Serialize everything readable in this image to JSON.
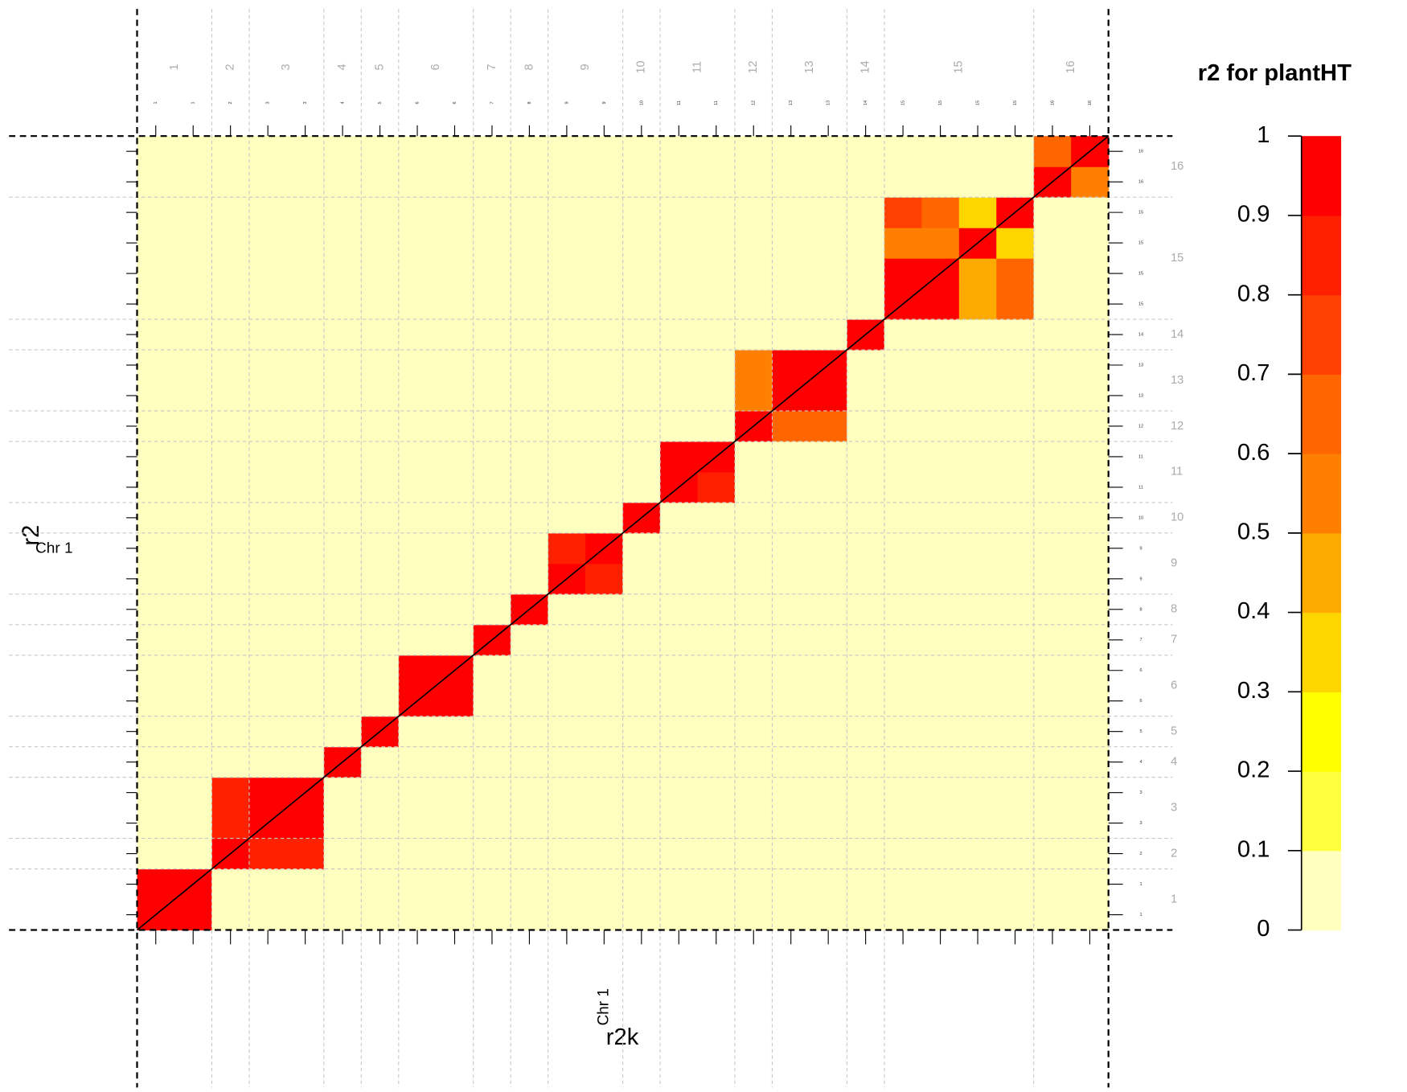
{
  "chart_data": {
    "type": "heatmap",
    "x_label": "r2k",
    "y_label": "r2",
    "sublabel": "Chr 1",
    "markers": [
      "1",
      "1",
      "2",
      "3",
      "3",
      "4",
      "5",
      "6",
      "6",
      "7",
      "8",
      "9",
      "9",
      "10",
      "11",
      "11",
      "12",
      "13",
      "13",
      "14",
      "15",
      "15",
      "15",
      "15",
      "16",
      "16"
    ],
    "values": [
      [
        0.95,
        0.95,
        0,
        0,
        0,
        0,
        0,
        0,
        0,
        0,
        0,
        0,
        0,
        0,
        0,
        0,
        0,
        0,
        0,
        0,
        0,
        0,
        0,
        0,
        0,
        0
      ],
      [
        0.95,
        0.95,
        0,
        0,
        0,
        0,
        0,
        0,
        0,
        0,
        0,
        0,
        0,
        0,
        0,
        0,
        0,
        0,
        0,
        0,
        0,
        0,
        0,
        0,
        0,
        0
      ],
      [
        0,
        0,
        0.95,
        0.85,
        0.85,
        0,
        0,
        0,
        0,
        0,
        0,
        0,
        0,
        0,
        0,
        0,
        0,
        0,
        0,
        0,
        0,
        0,
        0,
        0,
        0,
        0
      ],
      [
        0,
        0,
        0.85,
        0.95,
        0.95,
        0,
        0,
        0,
        0,
        0,
        0,
        0,
        0,
        0,
        0,
        0,
        0,
        0,
        0,
        0,
        0,
        0,
        0,
        0,
        0,
        0
      ],
      [
        0,
        0,
        0.85,
        0.95,
        0.95,
        0,
        0,
        0,
        0,
        0,
        0,
        0,
        0,
        0,
        0,
        0,
        0,
        0,
        0,
        0,
        0,
        0,
        0,
        0,
        0,
        0
      ],
      [
        0,
        0,
        0,
        0,
        0,
        0.95,
        0,
        0,
        0,
        0,
        0,
        0,
        0,
        0,
        0,
        0,
        0,
        0,
        0,
        0,
        0,
        0,
        0,
        0,
        0,
        0
      ],
      [
        0,
        0,
        0,
        0,
        0,
        0,
        0.95,
        0,
        0,
        0,
        0,
        0,
        0,
        0,
        0,
        0,
        0,
        0,
        0,
        0,
        0,
        0,
        0,
        0,
        0,
        0
      ],
      [
        0,
        0,
        0,
        0,
        0,
        0,
        0,
        0.95,
        0.95,
        0,
        0,
        0,
        0,
        0,
        0,
        0,
        0,
        0,
        0,
        0,
        0,
        0,
        0,
        0,
        0,
        0
      ],
      [
        0,
        0,
        0,
        0,
        0,
        0,
        0,
        0.95,
        0.95,
        0,
        0,
        0,
        0,
        0,
        0,
        0,
        0,
        0,
        0,
        0,
        0,
        0,
        0,
        0,
        0,
        0
      ],
      [
        0,
        0,
        0,
        0,
        0,
        0,
        0,
        0,
        0,
        0.95,
        0,
        0,
        0,
        0,
        0,
        0,
        0,
        0,
        0,
        0,
        0,
        0,
        0,
        0,
        0,
        0
      ],
      [
        0,
        0,
        0,
        0,
        0,
        0,
        0,
        0,
        0,
        0,
        0.95,
        0,
        0,
        0,
        0,
        0,
        0,
        0,
        0,
        0,
        0,
        0,
        0,
        0,
        0,
        0
      ],
      [
        0,
        0,
        0,
        0,
        0,
        0,
        0,
        0,
        0,
        0,
        0,
        0.95,
        0.85,
        0,
        0,
        0,
        0,
        0,
        0,
        0,
        0,
        0,
        0,
        0,
        0,
        0
      ],
      [
        0,
        0,
        0,
        0,
        0,
        0,
        0,
        0,
        0,
        0,
        0,
        0.85,
        0.95,
        0,
        0,
        0,
        0,
        0,
        0,
        0,
        0,
        0,
        0,
        0,
        0,
        0
      ],
      [
        0,
        0,
        0,
        0,
        0,
        0,
        0,
        0,
        0,
        0,
        0,
        0,
        0,
        0.95,
        0,
        0,
        0,
        0,
        0,
        0,
        0,
        0,
        0,
        0,
        0,
        0
      ],
      [
        0,
        0,
        0,
        0,
        0,
        0,
        0,
        0,
        0,
        0,
        0,
        0,
        0,
        0,
        0.95,
        0.85,
        0,
        0,
        0,
        0,
        0,
        0,
        0,
        0,
        0,
        0
      ],
      [
        0,
        0,
        0,
        0,
        0,
        0,
        0,
        0,
        0,
        0,
        0,
        0,
        0,
        0,
        0.95,
        0.95,
        0,
        0,
        0,
        0,
        0,
        0,
        0,
        0,
        0,
        0
      ],
      [
        0,
        0,
        0,
        0,
        0,
        0,
        0,
        0,
        0,
        0,
        0,
        0,
        0,
        0,
        0,
        0,
        0.95,
        0.65,
        0.65,
        0,
        0,
        0,
        0,
        0,
        0,
        0
      ],
      [
        0,
        0,
        0,
        0,
        0,
        0,
        0,
        0,
        0,
        0,
        0,
        0,
        0,
        0,
        0,
        0,
        0.55,
        0.95,
        0.95,
        0,
        0,
        0,
        0,
        0,
        0,
        0
      ],
      [
        0,
        0,
        0,
        0,
        0,
        0,
        0,
        0,
        0,
        0,
        0,
        0,
        0,
        0,
        0,
        0,
        0.55,
        0.95,
        0.95,
        0,
        0,
        0,
        0,
        0,
        0,
        0
      ],
      [
        0,
        0,
        0,
        0,
        0,
        0,
        0,
        0,
        0,
        0,
        0,
        0,
        0,
        0,
        0,
        0,
        0,
        0,
        0,
        0.95,
        0,
        0,
        0,
        0,
        0,
        0
      ],
      [
        0,
        0,
        0,
        0,
        0,
        0,
        0,
        0,
        0,
        0,
        0,
        0,
        0,
        0,
        0,
        0,
        0,
        0,
        0,
        0,
        0.95,
        0.95,
        0.45,
        0.65,
        0,
        0
      ],
      [
        0,
        0,
        0,
        0,
        0,
        0,
        0,
        0,
        0,
        0,
        0,
        0,
        0,
        0,
        0,
        0,
        0,
        0,
        0,
        0,
        0.95,
        0.95,
        0.45,
        0.65,
        0,
        0
      ],
      [
        0,
        0,
        0,
        0,
        0,
        0,
        0,
        0,
        0,
        0,
        0,
        0,
        0,
        0,
        0,
        0,
        0,
        0,
        0,
        0,
        0.55,
        0.55,
        0.95,
        0.35,
        0,
        0
      ],
      [
        0,
        0,
        0,
        0,
        0,
        0,
        0,
        0,
        0,
        0,
        0,
        0,
        0,
        0,
        0,
        0,
        0,
        0,
        0,
        0,
        0.75,
        0.65,
        0.35,
        0.95,
        0,
        0
      ],
      [
        0,
        0,
        0,
        0,
        0,
        0,
        0,
        0,
        0,
        0,
        0,
        0,
        0,
        0,
        0,
        0,
        0,
        0,
        0,
        0,
        0,
        0,
        0,
        0,
        0.95,
        0.55
      ],
      [
        0,
        0,
        0,
        0,
        0,
        0,
        0,
        0,
        0,
        0,
        0,
        0,
        0,
        0,
        0,
        0,
        0,
        0,
        0,
        0,
        0,
        0,
        0,
        0,
        0.65,
        0.95
      ]
    ],
    "legend": {
      "title": "r2 for plantHT",
      "lim": [
        0,
        1
      ],
      "ticks": [
        0,
        0.1,
        0.2,
        0.3,
        0.4,
        0.5,
        0.6,
        0.7,
        0.8,
        0.9,
        1
      ],
      "colors": [
        "#FFFFBF",
        "#FFFF40",
        "#FFFF00",
        "#FFD500",
        "#FFAA00",
        "#FF8000",
        "#FF6600",
        "#FF4000",
        "#FF2000",
        "#FF0000"
      ]
    }
  }
}
